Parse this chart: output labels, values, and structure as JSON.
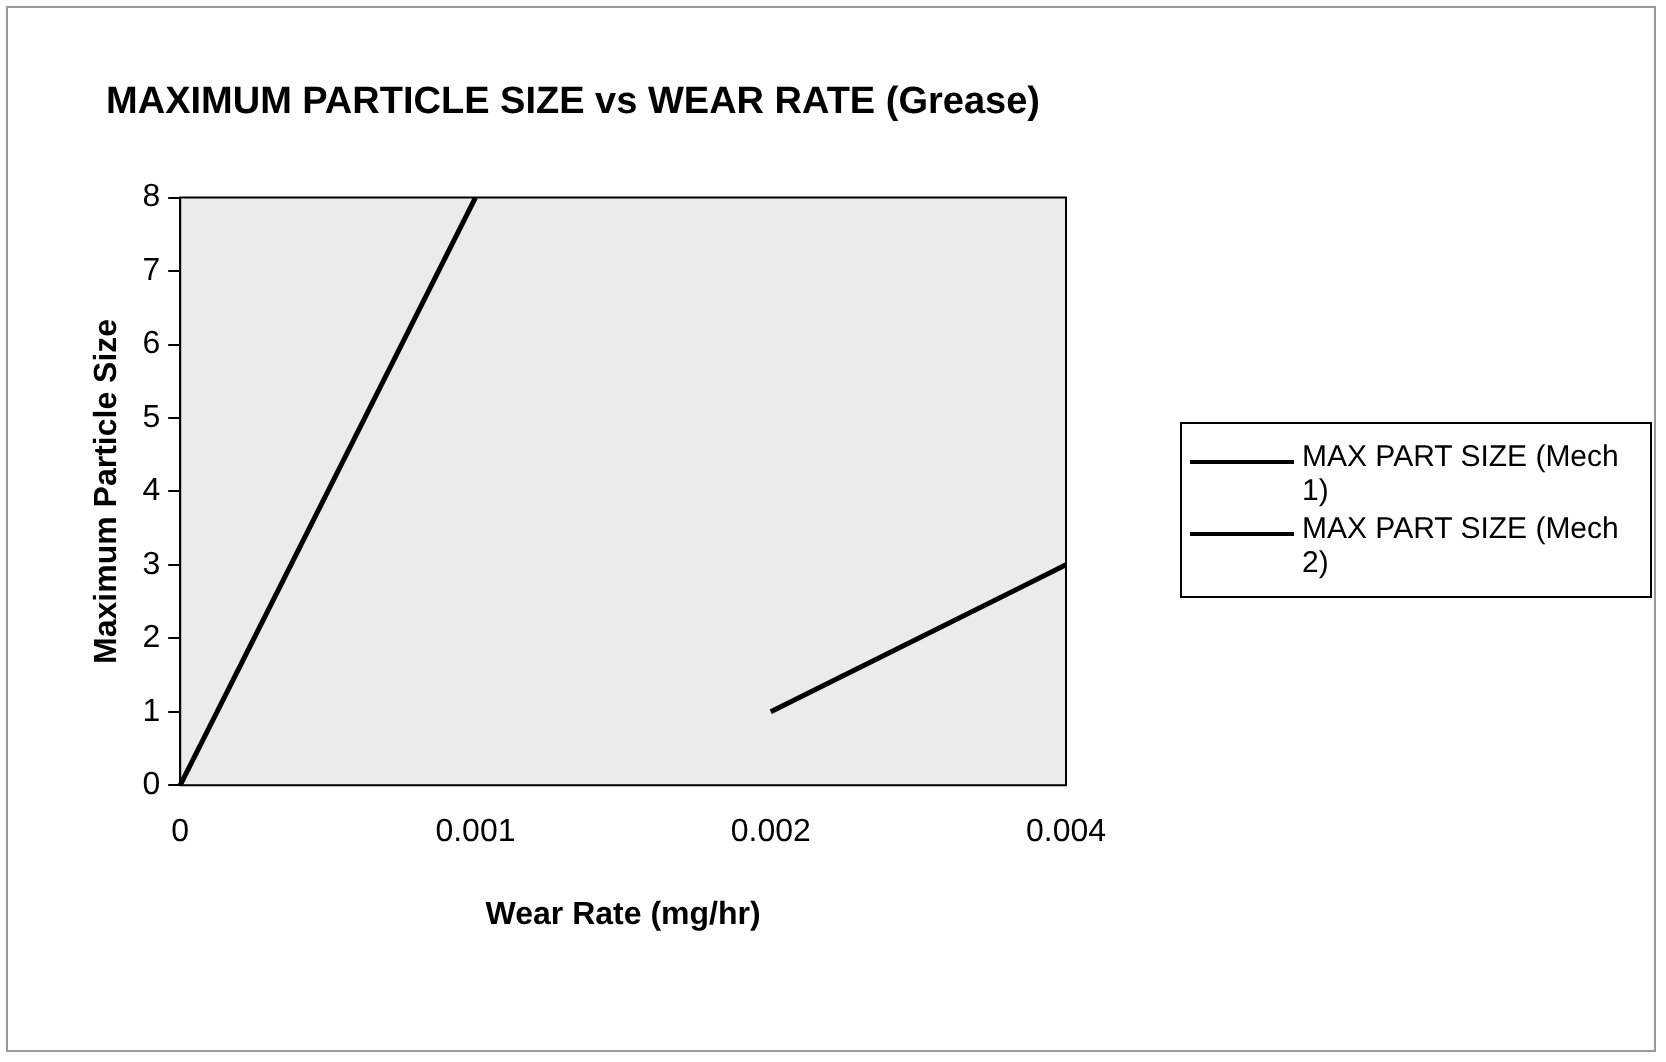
{
  "chart_data": {
    "type": "line",
    "title": "MAXIMUM PARTICLE SIZE vs WEAR RATE (Grease)",
    "xlabel": "Wear Rate (mg/hr)",
    "ylabel": "Maximum Particle Size",
    "categories": [
      "0",
      "0.001",
      "0.002",
      "0.004"
    ],
    "series": [
      {
        "name": "MAX PART SIZE (Mech 1)",
        "color": "#000000",
        "values": [
          0,
          8,
          null,
          null
        ]
      },
      {
        "name": "MAX PART SIZE (Mech 2)",
        "color": "#000000",
        "values": [
          null,
          null,
          1,
          3
        ]
      }
    ],
    "ylim": [
      0,
      8
    ],
    "yticks": [
      0,
      1,
      2,
      3,
      4,
      5,
      6,
      7,
      8
    ],
    "grid": false,
    "legend": "right",
    "marker": "none",
    "line_style": "solid"
  }
}
